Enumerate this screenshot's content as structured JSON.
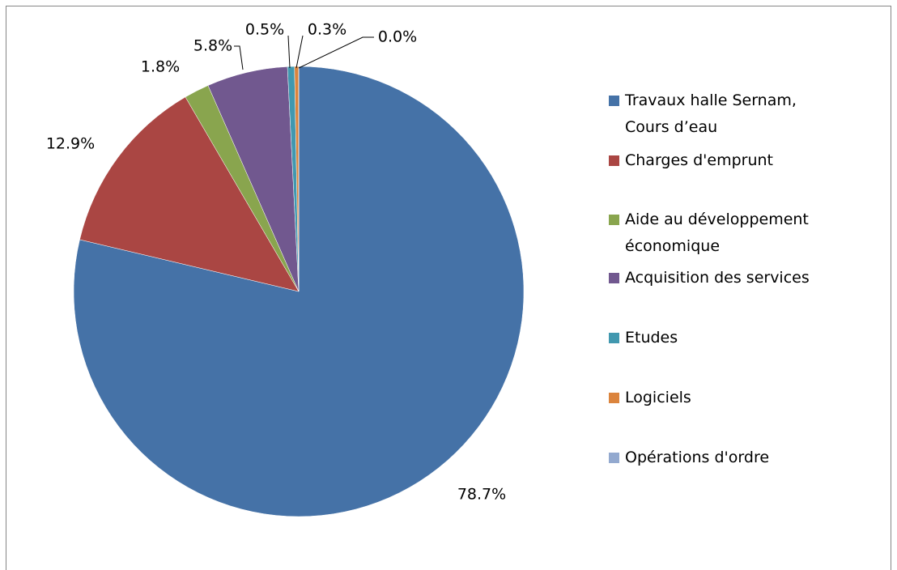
{
  "chart_data": {
    "type": "pie",
    "categories": [
      "Travaux halle Sernam, Cours d’eau",
      "Charges d'emprunt",
      "Aide au développement économique",
      "Acquisition des services",
      "Etudes",
      "Logiciels",
      "Opérations d'ordre"
    ],
    "values": [
      78.7,
      12.9,
      1.8,
      5.8,
      0.5,
      0.3,
      0.0
    ],
    "value_labels": [
      "78.7%",
      "12.9%",
      "1.8%",
      "5.8%",
      "0.5%",
      "0.3%",
      "0.0%"
    ],
    "colors": [
      "#4572a7",
      "#aa4643",
      "#89a54e",
      "#71588f",
      "#4198af",
      "#db843d",
      "#93a9cf"
    ],
    "legend": "right"
  }
}
